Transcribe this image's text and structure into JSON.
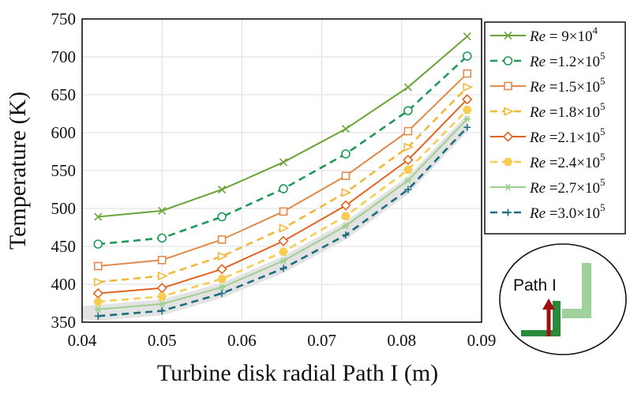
{
  "chart_data": {
    "type": "line",
    "xlabel": "Turbine disk radial Path I (m)",
    "ylabel": "Temperature (K)",
    "xlim": [
      0.04,
      0.09
    ],
    "ylim": [
      350,
      750
    ],
    "xticks": [
      "0.04",
      "0.05",
      "0.06",
      "0.07",
      "0.08",
      "0.09"
    ],
    "yticks": [
      "350",
      "400",
      "450",
      "500",
      "550",
      "600",
      "650",
      "700",
      "750"
    ],
    "grid": true,
    "legend_position": "right-outside-top",
    "x": [
      0.042,
      0.05,
      0.0575,
      0.0652,
      0.073,
      0.0808,
      0.0882
    ],
    "series": [
      {
        "name": "Re = 9×10^4",
        "color": "#6aa336",
        "dash": "solid",
        "marker": "x",
        "values": [
          489,
          497,
          525,
          561,
          605,
          660,
          727
        ],
        "label_it": "Re",
        "label_main": " = 9×10",
        "label_sup": "4"
      },
      {
        "name": "Re =1.2×10^5",
        "color": "#1f9a58",
        "dash": "dashed",
        "marker": "circle",
        "values": [
          453,
          461,
          489,
          526,
          572,
          629,
          701
        ],
        "label_it": "Re",
        "label_main": " =1.2×10",
        "label_sup": "5"
      },
      {
        "name": "Re =1.5×10^5",
        "color": "#e08a4c",
        "dash": "solid",
        "marker": "square",
        "values": [
          424,
          432,
          459,
          496,
          543,
          602,
          678
        ],
        "label_it": "Re",
        "label_main": " =1.5×10",
        "label_sup": "5"
      },
      {
        "name": "Re =1.8×10^5",
        "color": "#f0b93c",
        "dash": "dashed",
        "marker": "triangle-right",
        "values": [
          403,
          411,
          437,
          474,
          521,
          581,
          660
        ],
        "label_it": "Re",
        "label_main": " =1.8×10",
        "label_sup": "5"
      },
      {
        "name": "Re =2.1×10^5",
        "color": "#e2631f",
        "dash": "solid",
        "marker": "diamond",
        "values": [
          388,
          395,
          420,
          457,
          504,
          564,
          644
        ],
        "label_it": "Re",
        "label_main": " =2.1×10",
        "label_sup": "5"
      },
      {
        "name": "Re =2.4×10^5",
        "color": "#f6cc52",
        "dash": "dashed",
        "marker": "hexagon",
        "values": [
          377,
          384,
          407,
          443,
          490,
          551,
          630
        ],
        "label_it": "Re",
        "label_main": " =2.4×10",
        "label_sup": "5"
      },
      {
        "name": "Re =2.7×10^5",
        "color": "#9ecf8f",
        "dash": "solid",
        "marker": "asterisk",
        "values": [
          367,
          374,
          396,
          431,
          477,
          537,
          618
        ],
        "label_it": "Re",
        "label_main": " =2.7×10",
        "label_sup": "5"
      },
      {
        "name": "Re =3.0×10^5",
        "color": "#1c6d80",
        "dash": "dashed",
        "marker": "plus",
        "values": [
          358,
          365,
          388,
          421,
          465,
          525,
          607
        ],
        "label_it": "Re",
        "label_main": " =3.0×10",
        "label_sup": "5"
      }
    ]
  },
  "inset": {
    "label": "Path I",
    "colors": {
      "dark_green": "#2a8a3c",
      "light_green": "#9fd19b",
      "arrow_red": "#a11010"
    }
  },
  "shading": {
    "color": "#e3e3e3"
  }
}
